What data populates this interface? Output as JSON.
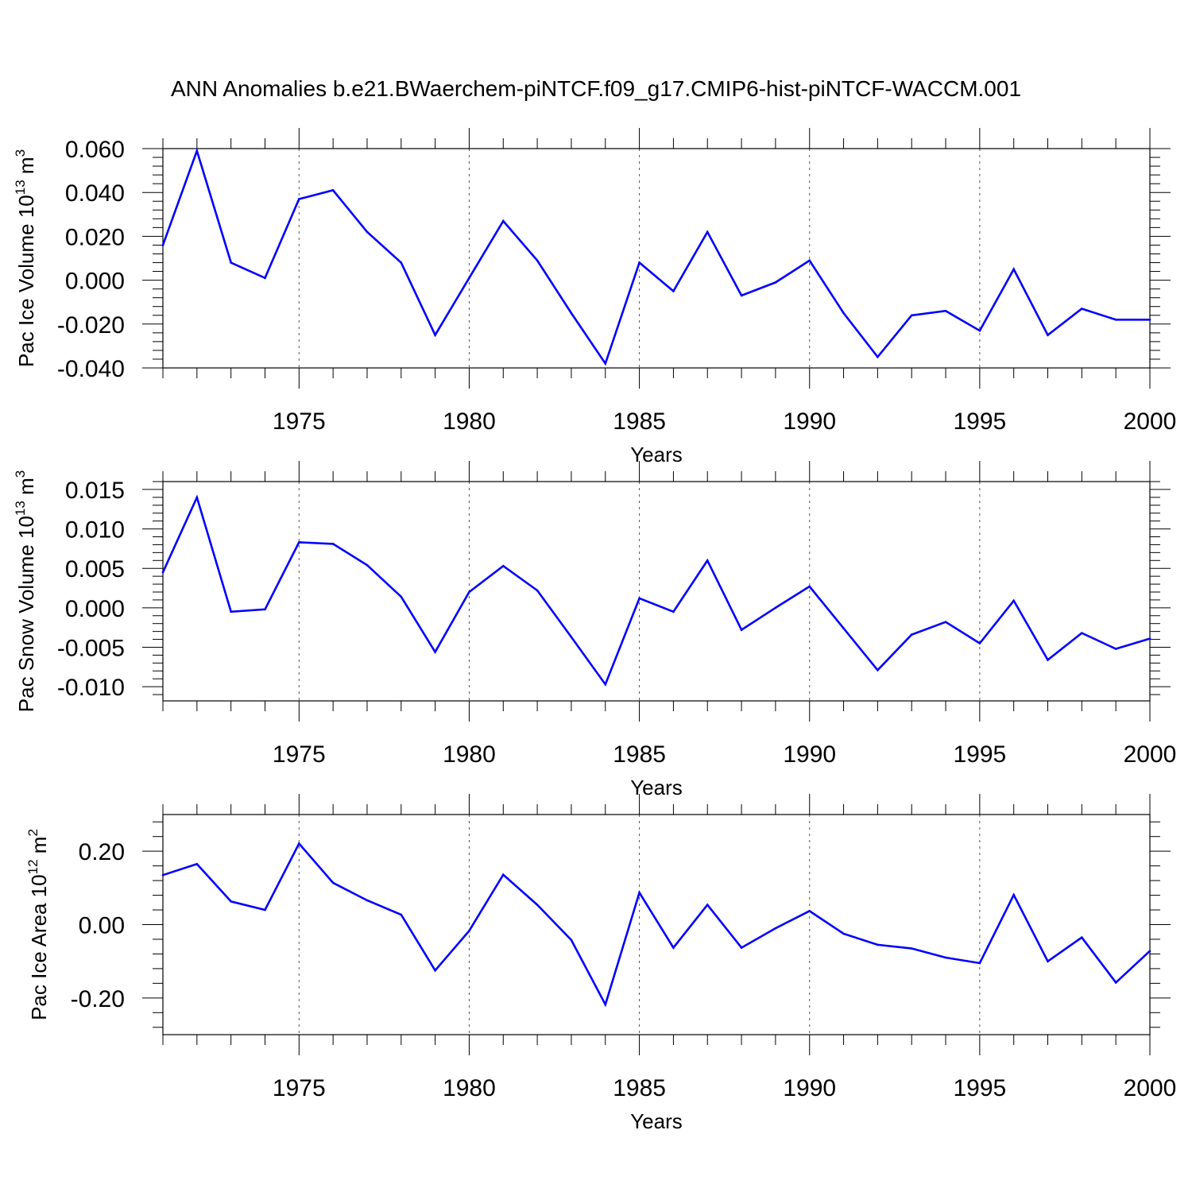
{
  "title": "ANN Anomalies b.e21.BWaerchem-piNTCF.f09_g17.CMIP6-hist-piNTCF-WACCM.001",
  "colors": {
    "line": "#0000ff",
    "axis": "#000000",
    "grid": "#555555"
  },
  "chart_data": [
    {
      "type": "line",
      "ylabel": "Pac Ice Volume 10",
      "ylabel_sup": "13",
      "ylabel_unit": "m",
      "ylabel_unit_sup": "3",
      "xlabel": "Years",
      "xlim": [
        1971,
        2000
      ],
      "ylim": [
        -0.04,
        0.06
      ],
      "yticks": [
        0.06,
        0.04,
        0.02,
        0.0,
        -0.02,
        -0.04
      ],
      "ytick_labels": [
        "0.060",
        "0.040",
        "0.020",
        "0.000",
        "-0.020",
        "-0.040"
      ],
      "xticks": [
        1975,
        1980,
        1985,
        1990,
        1995,
        2000
      ],
      "xtick_labels": [
        "1975",
        "1980",
        "1985",
        "1990",
        "1995",
        "2000"
      ],
      "grid": "vertical dashed at labeled years",
      "series": [
        {
          "x": [
            1971,
            1972,
            1973,
            1974,
            1975,
            1976,
            1977,
            1978,
            1979,
            1980,
            1981,
            1982,
            1983,
            1984,
            1985,
            1986,
            1987,
            1988,
            1989,
            1990,
            1991,
            1992,
            1993,
            1994,
            1995,
            1996,
            1997,
            1998,
            1999,
            2000
          ],
          "values": [
            0.016,
            0.059,
            0.008,
            0.001,
            0.037,
            0.041,
            0.022,
            0.008,
            -0.025,
            0.001,
            0.027,
            0.009,
            -0.015,
            -0.038,
            0.008,
            -0.005,
            0.022,
            -0.007,
            -0.001,
            0.009,
            -0.015,
            -0.035,
            -0.016,
            -0.014,
            -0.023,
            0.005,
            -0.025,
            -0.013,
            -0.018,
            -0.018
          ]
        }
      ]
    },
    {
      "type": "line",
      "ylabel": "Pac Snow Volume 10",
      "ylabel_sup": "13",
      "ylabel_unit": "m",
      "ylabel_unit_sup": "3",
      "xlabel": "Years",
      "xlim": [
        1971,
        2000
      ],
      "ylim": [
        -0.0118,
        0.016
      ],
      "yticks": [
        0.015,
        0.01,
        0.005,
        0.0,
        -0.005,
        -0.01
      ],
      "ytick_labels": [
        "0.015",
        "0.010",
        "0.005",
        "0.000",
        "-0.005",
        "-0.010"
      ],
      "xticks": [
        1975,
        1980,
        1985,
        1990,
        1995,
        2000
      ],
      "xtick_labels": [
        "1975",
        "1980",
        "1985",
        "1990",
        "1995",
        "2000"
      ],
      "grid": "vertical dashed at labeled years",
      "series": [
        {
          "x": [
            1971,
            1972,
            1973,
            1974,
            1975,
            1976,
            1977,
            1978,
            1979,
            1980,
            1981,
            1982,
            1983,
            1984,
            1985,
            1986,
            1987,
            1988,
            1989,
            1990,
            1991,
            1992,
            1993,
            1994,
            1995,
            1996,
            1997,
            1998,
            1999,
            2000
          ],
          "values": [
            0.0045,
            0.014,
            -0.0005,
            -0.0002,
            0.0083,
            0.0081,
            0.0054,
            0.0014,
            -0.0056,
            0.002,
            0.0053,
            0.0022,
            -0.0037,
            -0.0097,
            0.0012,
            -0.0005,
            0.006,
            -0.0028,
            0.0,
            0.0027,
            -0.0026,
            -0.0079,
            -0.0034,
            -0.0018,
            -0.0045,
            0.0009,
            -0.0066,
            -0.0032,
            -0.0052,
            -0.0039
          ]
        }
      ]
    },
    {
      "type": "line",
      "ylabel": "Pac Ice Area 10",
      "ylabel_sup": "12",
      "ylabel_unit": "m",
      "ylabel_unit_sup": "2",
      "xlabel": "Years",
      "xlim": [
        1971,
        2000
      ],
      "ylim": [
        -0.3,
        0.3
      ],
      "yticks": [
        0.2,
        0.0,
        -0.2
      ],
      "ytick_labels": [
        "0.20",
        "0.00",
        "-0.20"
      ],
      "xticks": [
        1975,
        1980,
        1985,
        1990,
        1995,
        2000
      ],
      "xtick_labels": [
        "1975",
        "1980",
        "1985",
        "1990",
        "1995",
        "2000"
      ],
      "grid": "vertical dashed at labeled years",
      "series": [
        {
          "x": [
            1971,
            1972,
            1973,
            1974,
            1975,
            1976,
            1977,
            1978,
            1979,
            1980,
            1981,
            1982,
            1983,
            1984,
            1985,
            1986,
            1987,
            1988,
            1989,
            1990,
            1991,
            1992,
            1993,
            1994,
            1995,
            1996,
            1997,
            1998,
            1999,
            2000
          ],
          "values": [
            0.135,
            0.165,
            0.063,
            0.04,
            0.221,
            0.114,
            0.066,
            0.027,
            -0.125,
            -0.017,
            0.136,
            0.054,
            -0.042,
            -0.218,
            0.087,
            -0.063,
            0.054,
            -0.063,
            -0.01,
            0.037,
            -0.025,
            -0.055,
            -0.065,
            -0.09,
            -0.105,
            0.081,
            -0.1,
            -0.035,
            -0.158,
            -0.072
          ]
        }
      ]
    }
  ]
}
